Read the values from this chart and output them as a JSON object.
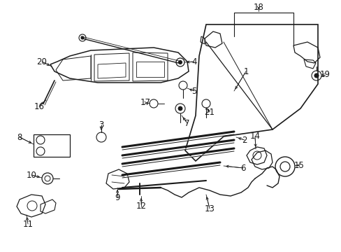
{
  "background_color": "#ffffff",
  "line_color": "#1a1a1a",
  "fig_width": 4.89,
  "fig_height": 3.6,
  "dpi": 100,
  "label_fs": 8.0
}
